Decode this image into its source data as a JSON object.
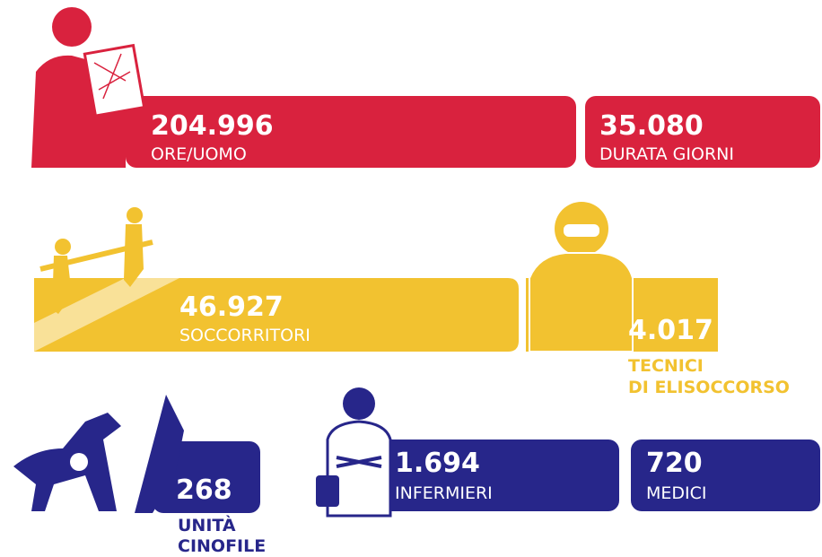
{
  "stats": [
    {
      "value": "204.996",
      "label": "ORE/UOMO"
    },
    {
      "value": "35.080",
      "label": "DURATA GIORNI"
    },
    {
      "value": "46.927",
      "label": "SOCCORRITORI"
    },
    {
      "value": "4.017",
      "label": [
        "TECNICI",
        "DI ELISOCCORSO"
      ]
    },
    {
      "value": "268",
      "label": [
        "UNITÀ",
        "CINOFILE"
      ]
    },
    {
      "value": "1.694",
      "label": "INFERMIERI"
    },
    {
      "value": "720",
      "label": "MEDICI"
    }
  ]
}
